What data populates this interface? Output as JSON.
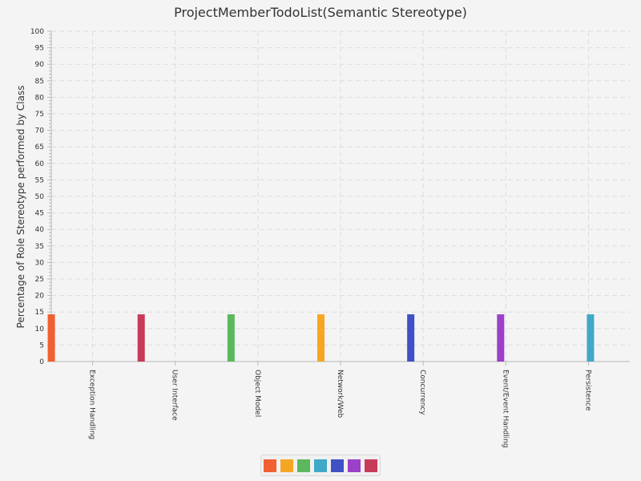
{
  "chart_data": {
    "type": "bar",
    "title": "ProjectMemberTodoList(Semantic Stereotype)",
    "xlabel": "",
    "ylabel": "Percentage of Role Stereotype performed by Class",
    "ylim": [
      0,
      100
    ],
    "y_major_step": 5,
    "grid": true,
    "legend_position": "bottom",
    "categories": [
      "Exception Handling",
      "User Interface",
      "Object Model",
      "Network/Web",
      "Concurrency",
      "Event/Event Handling",
      "Persistence"
    ],
    "series": [
      {
        "color": "#f06030",
        "values": [
          14.3,
          0,
          0,
          0,
          0,
          0,
          0
        ]
      },
      {
        "color": "#c83a5a",
        "values": [
          0,
          14.3,
          0,
          0,
          0,
          0,
          0
        ]
      },
      {
        "color": "#5cb85c",
        "values": [
          0,
          0,
          14.3,
          0,
          0,
          0,
          0
        ]
      },
      {
        "color": "#f5a623",
        "values": [
          0,
          0,
          0,
          14.3,
          0,
          0,
          0
        ]
      },
      {
        "color": "#3f51c4",
        "values": [
          0,
          0,
          0,
          0,
          14.3,
          0,
          0
        ]
      },
      {
        "color": "#9b40c8",
        "values": [
          0,
          0,
          0,
          0,
          0,
          14.3,
          0
        ]
      },
      {
        "color": "#41a8c8",
        "values": [
          0,
          0,
          0,
          0,
          0,
          0,
          14.3
        ]
      }
    ],
    "legend_colors": [
      "#f06030",
      "#f5a623",
      "#5cb85c",
      "#41a8c8",
      "#3f51c4",
      "#9b40c8",
      "#c83a5a"
    ]
  }
}
